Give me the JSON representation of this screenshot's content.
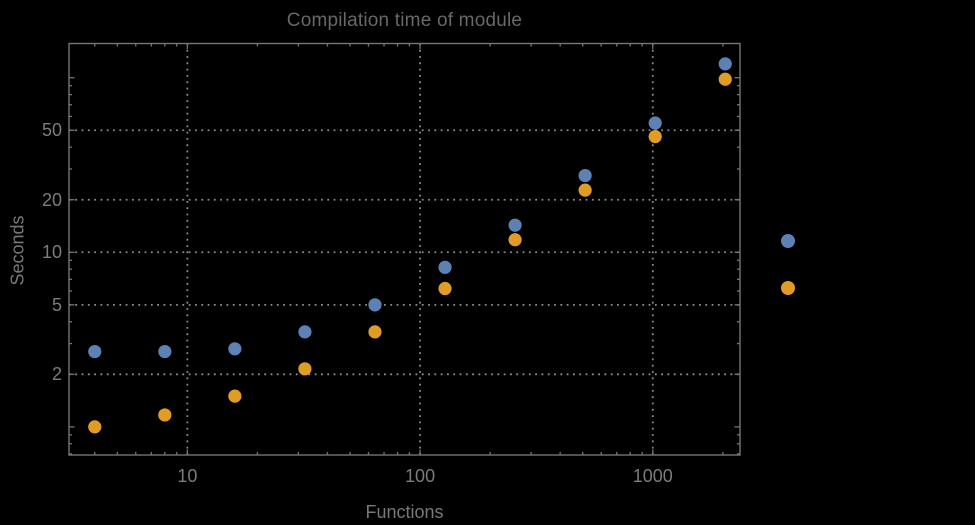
{
  "colors": {
    "background": "#000000",
    "frame": "#757575",
    "grid": "#8c8c8c",
    "tick_label": "#7c7c7c",
    "title": "#686868",
    "axis_label": "#787878",
    "series_blue": "#5e81b5",
    "series_orange": "#e19c24"
  },
  "chart_data": {
    "type": "scatter",
    "title": "Compilation time of module",
    "xlabel": "Functions",
    "ylabel": "Seconds",
    "x_scale": "log",
    "y_scale": "log",
    "xlim": [
      3.1,
      2370
    ],
    "ylim": [
      0.69,
      157
    ],
    "x_ticks": [
      10,
      100,
      1000
    ],
    "y_ticks": [
      2,
      5,
      10,
      20,
      50
    ],
    "grid": "dotted",
    "x": [
      4,
      8,
      16,
      32,
      64,
      128,
      256,
      512,
      1024,
      2048
    ],
    "series": [
      {
        "name": "blue",
        "color": "#5e81b5",
        "values": [
          2.7,
          2.7,
          2.8,
          3.5,
          5.0,
          8.2,
          14.3,
          27.5,
          55,
          120
        ]
      },
      {
        "name": "orange",
        "color": "#e19c24",
        "values": [
          1.0,
          1.17,
          1.5,
          2.15,
          3.5,
          6.2,
          11.8,
          22.7,
          46,
          98
        ]
      }
    ],
    "legend": {
      "position": "right-outside",
      "labels_visible": false,
      "markers": [
        {
          "name": "blue",
          "color": "#5e81b5"
        },
        {
          "name": "orange",
          "color": "#e19c24"
        }
      ]
    }
  }
}
